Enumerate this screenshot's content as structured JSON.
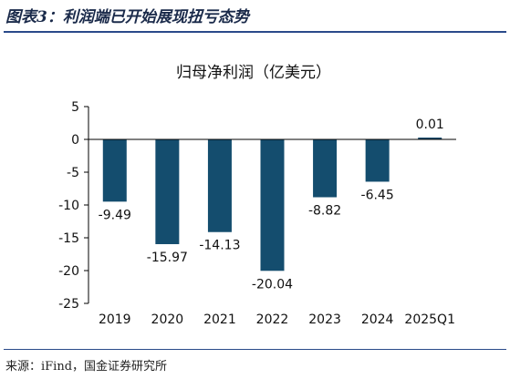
{
  "figure_title": "图表3：利润端已开始展现扭亏态势",
  "source": "来源：iFind，国金证券研究所",
  "colors": {
    "bar": "#144d6e",
    "axis": "#000000",
    "rule": "#2a4a8a"
  },
  "chart_data": {
    "type": "bar",
    "title": "归母净利润（亿美元）",
    "xlabel": "",
    "ylabel": "",
    "categories": [
      "2019",
      "2020",
      "2021",
      "2022",
      "2023",
      "2024",
      "2025Q1"
    ],
    "values": [
      -9.49,
      -15.97,
      -14.13,
      -20.04,
      -8.82,
      -6.45,
      0.01
    ],
    "data_labels": [
      "-9.49",
      "-15.97",
      "-14.13",
      "-20.04",
      "-8.82",
      "-6.45",
      "0.01"
    ],
    "ylim": [
      -25,
      5
    ],
    "yticks": [
      5,
      0,
      -5,
      -10,
      -15,
      -20,
      -25
    ],
    "grid": false,
    "legend": "none"
  }
}
